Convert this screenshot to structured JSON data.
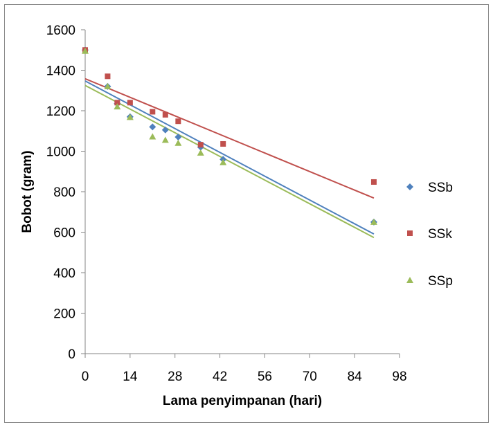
{
  "chart_data": {
    "type": "scatter",
    "title": "",
    "xlabel": "Lama penyimpanan (hari)",
    "ylabel": "Bobot (gram)",
    "xlim": [
      0,
      98
    ],
    "ylim": [
      0,
      1600
    ],
    "xticks": [
      0,
      14,
      28,
      42,
      56,
      70,
      84,
      98
    ],
    "yticks": [
      0,
      200,
      400,
      600,
      800,
      1000,
      1200,
      1400,
      1600
    ],
    "grid": false,
    "legend_position": "right",
    "trendlines": "linear",
    "series": [
      {
        "name": "SSb",
        "marker": "diamond",
        "color": "#4f81bd",
        "x": [
          0,
          7,
          10,
          14,
          21,
          25,
          29,
          36,
          43,
          90
        ],
        "y": [
          1500,
          1320,
          1235,
          1170,
          1120,
          1105,
          1070,
          1020,
          960,
          650
        ],
        "trend": {
          "intercept": 1347,
          "slope": -8.4
        }
      },
      {
        "name": "SSk",
        "marker": "square",
        "color": "#c0504d",
        "x": [
          0,
          7,
          10,
          14,
          21,
          25,
          29,
          36,
          43,
          90
        ],
        "y": [
          1500,
          1370,
          1240,
          1240,
          1195,
          1180,
          1148,
          1032,
          1036,
          848
        ],
        "trend": {
          "intercept": 1358,
          "slope": -6.55
        }
      },
      {
        "name": "SSp",
        "marker": "triangle",
        "color": "#9bbb59",
        "x": [
          0,
          7,
          10,
          14,
          21,
          25,
          29,
          36,
          43,
          90
        ],
        "y": [
          1495,
          1320,
          1220,
          1168,
          1072,
          1055,
          1040,
          992,
          945,
          650
        ],
        "trend": {
          "intercept": 1325,
          "slope": -8.35
        }
      }
    ]
  }
}
